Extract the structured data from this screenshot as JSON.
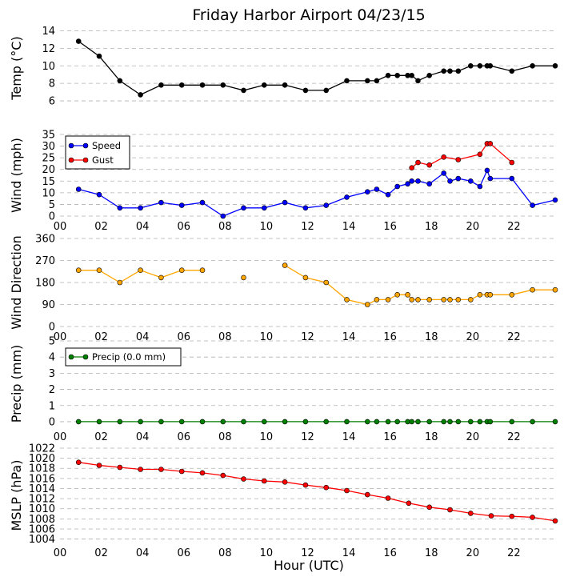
{
  "chart_data": {
    "title": "Friday Harbor Airport 04/23/15",
    "xlabel": "Hour (UTC)",
    "xlim": [
      0,
      24
    ],
    "xticks": [
      0,
      2,
      4,
      6,
      8,
      10,
      12,
      14,
      16,
      18,
      20,
      22
    ],
    "xtick_labels": [
      "00",
      "02",
      "04",
      "06",
      "08",
      "10",
      "12",
      "14",
      "16",
      "18",
      "20",
      "22"
    ],
    "panels": [
      {
        "id": "temp",
        "type": "line",
        "ylabel": "Temp (°C)",
        "ylim": [
          5,
          14.5
        ],
        "yticks": [
          6,
          8,
          10,
          12,
          14
        ],
        "ytick_labels": [
          "6",
          "8",
          "10",
          "12",
          "14"
        ],
        "show_xtick_labels": false,
        "series": [
          {
            "name": "Temp",
            "color": "#000000",
            "points": [
              [
                0.9,
                12.8
              ],
              [
                1.9,
                11.1
              ],
              [
                2.9,
                8.3
              ],
              [
                3.9,
                6.7
              ],
              [
                4.9,
                7.8
              ],
              [
                5.9,
                7.8
              ],
              [
                6.9,
                7.8
              ],
              [
                7.9,
                7.8
              ],
              [
                8.9,
                7.2
              ],
              [
                9.9,
                7.8
              ],
              [
                10.9,
                7.8
              ],
              [
                11.9,
                7.2
              ],
              [
                12.9,
                7.2
              ],
              [
                13.9,
                8.3
              ],
              [
                14.9,
                8.3
              ],
              [
                15.35,
                8.3
              ],
              [
                15.9,
                8.9
              ],
              [
                16.35,
                8.9
              ],
              [
                16.85,
                8.9
              ],
              [
                17.05,
                8.9
              ],
              [
                17.35,
                8.3
              ],
              [
                17.9,
                8.9
              ],
              [
                18.6,
                9.4
              ],
              [
                18.9,
                9.4
              ],
              [
                19.3,
                9.4
              ],
              [
                19.9,
                10.0
              ],
              [
                20.35,
                10.0
              ],
              [
                20.7,
                10.0
              ],
              [
                20.85,
                10.0
              ],
              [
                21.9,
                9.4
              ],
              [
                22.9,
                10.0
              ],
              [
                24.0,
                10.0
              ]
            ]
          }
        ]
      },
      {
        "id": "wind",
        "type": "line",
        "ylabel": "Wind (mph)",
        "ylim": [
          0,
          35
        ],
        "yticks": [
          0,
          5,
          10,
          15,
          20,
          25,
          30,
          35
        ],
        "ytick_labels": [
          "0",
          "5",
          "10",
          "15",
          "20",
          "25",
          "30",
          "35"
        ],
        "show_xtick_labels": true,
        "legend": "top-left",
        "series": [
          {
            "name": "Speed",
            "color": "#0000ff",
            "points": [
              [
                0.9,
                11.5
              ],
              [
                1.9,
                9.2
              ],
              [
                2.9,
                3.5
              ],
              [
                3.9,
                3.5
              ],
              [
                4.9,
                5.8
              ],
              [
                5.9,
                4.6
              ],
              [
                6.9,
                5.8
              ],
              [
                7.9,
                0
              ],
              [
                8.9,
                3.5
              ],
              [
                9.9,
                3.5
              ],
              [
                10.9,
                5.8
              ],
              [
                11.9,
                3.5
              ],
              [
                12.9,
                4.6
              ],
              [
                13.9,
                8.1
              ],
              [
                14.9,
                10.4
              ],
              [
                15.35,
                11.5
              ],
              [
                15.9,
                9.2
              ],
              [
                16.35,
                12.7
              ],
              [
                16.85,
                13.8
              ],
              [
                17.05,
                15.0
              ],
              [
                17.35,
                15.0
              ],
              [
                17.9,
                13.8
              ],
              [
                18.6,
                18.4
              ],
              [
                18.9,
                15.0
              ],
              [
                19.3,
                16.1
              ],
              [
                19.9,
                15.0
              ],
              [
                20.35,
                12.7
              ],
              [
                20.7,
                19.6
              ],
              [
                20.85,
                16.1
              ],
              [
                21.9,
                16.1
              ],
              [
                22.9,
                4.6
              ],
              [
                24.0,
                6.9
              ]
            ]
          },
          {
            "name": "Gust",
            "color": "#ff0000",
            "points": [
              [
                17.05,
                20.7
              ],
              [
                17.35,
                23.0
              ],
              [
                17.9,
                21.9
              ],
              [
                18.6,
                25.3
              ],
              [
                19.3,
                24.2
              ],
              [
                20.35,
                26.5
              ],
              [
                20.7,
                31.1
              ],
              [
                20.85,
                31.1
              ],
              [
                21.9,
                23.0
              ]
            ]
          }
        ]
      },
      {
        "id": "dir",
        "type": "line",
        "ylabel": "Wind Direction",
        "ylim": [
          0,
          360
        ],
        "yticks": [
          0,
          90,
          180,
          270,
          360
        ],
        "ytick_labels": [
          "0",
          "90",
          "180",
          "270",
          "360"
        ],
        "show_xtick_labels": true,
        "series": [
          {
            "name": "Direction",
            "color": "#ffa500",
            "segments": [
              [
                [
                  0.9,
                  230
                ],
                [
                  1.9,
                  230
                ],
                [
                  2.9,
                  180
                ],
                [
                  3.9,
                  230
                ],
                [
                  4.9,
                  200
                ],
                [
                  5.9,
                  230
                ],
                [
                  6.9,
                  230
                ]
              ],
              [
                [
                  8.9,
                  200
                ]
              ],
              [
                [
                  10.9,
                  250
                ],
                [
                  11.9,
                  200
                ],
                [
                  12.9,
                  180
                ],
                [
                  13.9,
                  110
                ],
                [
                  14.9,
                  90
                ],
                [
                  15.35,
                  110
                ],
                [
                  15.9,
                  110
                ],
                [
                  16.35,
                  130
                ],
                [
                  16.85,
                  130
                ],
                [
                  17.05,
                  110
                ],
                [
                  17.35,
                  110
                ],
                [
                  17.9,
                  110
                ],
                [
                  18.6,
                  110
                ],
                [
                  18.9,
                  110
                ],
                [
                  19.3,
                  110
                ],
                [
                  19.9,
                  110
                ],
                [
                  20.35,
                  130
                ],
                [
                  20.7,
                  130
                ],
                [
                  20.85,
                  130
                ],
                [
                  21.9,
                  130
                ],
                [
                  22.9,
                  150
                ],
                [
                  24.0,
                  150
                ]
              ]
            ]
          }
        ]
      },
      {
        "id": "precip",
        "type": "line",
        "ylabel": "Precip (mm)",
        "ylim": [
          -0.3,
          5
        ],
        "yticks": [
          0,
          1,
          2,
          3,
          4,
          5
        ],
        "ytick_labels": [
          "0",
          "1",
          "2",
          "3",
          "4",
          "5"
        ],
        "show_xtick_labels": true,
        "legend": "top-left",
        "series": [
          {
            "name": "Precip (0.0 mm)",
            "color": "#008000",
            "points": [
              [
                0.9,
                0
              ],
              [
                1.9,
                0
              ],
              [
                2.9,
                0
              ],
              [
                3.9,
                0
              ],
              [
                4.9,
                0
              ],
              [
                5.9,
                0
              ],
              [
                6.9,
                0
              ],
              [
                7.9,
                0
              ],
              [
                8.9,
                0
              ],
              [
                9.9,
                0
              ],
              [
                10.9,
                0
              ],
              [
                11.9,
                0
              ],
              [
                12.9,
                0
              ],
              [
                13.9,
                0
              ],
              [
                14.9,
                0
              ],
              [
                15.35,
                0
              ],
              [
                15.9,
                0
              ],
              [
                16.35,
                0
              ],
              [
                16.85,
                0
              ],
              [
                17.05,
                0
              ],
              [
                17.35,
                0
              ],
              [
                17.9,
                0
              ],
              [
                18.6,
                0
              ],
              [
                18.9,
                0
              ],
              [
                19.3,
                0
              ],
              [
                19.9,
                0
              ],
              [
                20.35,
                0
              ],
              [
                20.7,
                0
              ],
              [
                20.85,
                0
              ],
              [
                21.9,
                0
              ],
              [
                22.9,
                0
              ],
              [
                24.0,
                0
              ]
            ]
          }
        ]
      },
      {
        "id": "mslp",
        "type": "line",
        "ylabel": "MSLP (hPa)",
        "ylim": [
          1003.3,
          1022
        ],
        "yticks": [
          1004,
          1006,
          1008,
          1010,
          1012,
          1014,
          1016,
          1018,
          1020,
          1022
        ],
        "ytick_labels": [
          "1004",
          "1006",
          "1008",
          "1010",
          "1012",
          "1014",
          "1016",
          "1018",
          "1020",
          "1022"
        ],
        "show_xtick_labels": true,
        "series": [
          {
            "name": "MSLP",
            "color": "#ff0000",
            "points": [
              [
                0.9,
                1019.2
              ],
              [
                1.9,
                1018.6
              ],
              [
                2.9,
                1018.2
              ],
              [
                3.9,
                1017.8
              ],
              [
                4.9,
                1017.8
              ],
              [
                5.9,
                1017.4
              ],
              [
                6.9,
                1017.1
              ],
              [
                7.9,
                1016.6
              ],
              [
                8.9,
                1015.9
              ],
              [
                9.9,
                1015.5
              ],
              [
                10.9,
                1015.3
              ],
              [
                11.9,
                1014.7
              ],
              [
                12.9,
                1014.2
              ],
              [
                13.9,
                1013.6
              ],
              [
                14.9,
                1012.8
              ],
              [
                15.9,
                1012.1
              ],
              [
                16.9,
                1011.1
              ],
              [
                17.9,
                1010.3
              ],
              [
                18.9,
                1009.8
              ],
              [
                19.9,
                1009.1
              ],
              [
                20.9,
                1008.6
              ],
              [
                21.9,
                1008.5
              ],
              [
                22.9,
                1008.3
              ],
              [
                24.0,
                1007.6
              ]
            ]
          }
        ]
      }
    ]
  }
}
